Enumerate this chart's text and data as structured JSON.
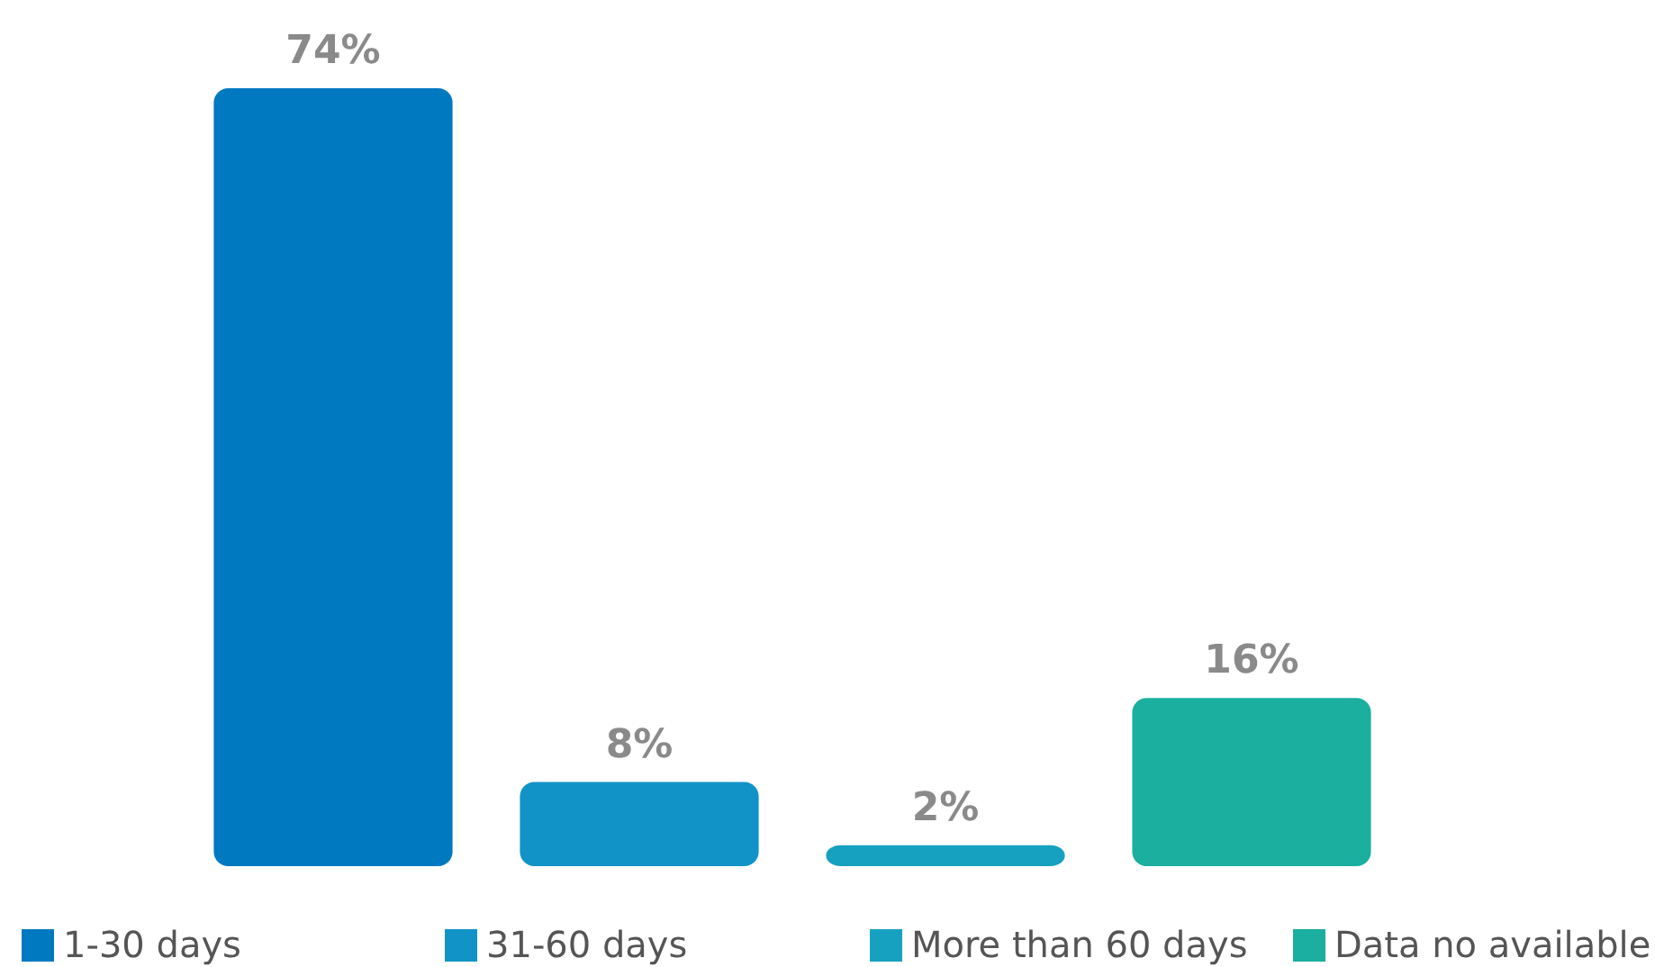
{
  "chart_data": {
    "type": "bar",
    "categories": [
      null,
      null,
      null,
      null
    ],
    "series": [
      {
        "name": "1-30 days",
        "color": "#0079c1",
        "values": [
          74,
          null,
          null,
          null
        ],
        "value_labels": [
          "74%",
          null,
          null,
          null
        ]
      },
      {
        "name": "31-60 days",
        "color": "#1193c7",
        "values": [
          null,
          8,
          null,
          null
        ],
        "value_labels": [
          null,
          "8%",
          null,
          null
        ]
      },
      {
        "name": "More than 60 days",
        "color": "#17a1c0",
        "values": [
          null,
          null,
          2,
          null
        ],
        "value_labels": [
          null,
          null,
          "2%",
          null
        ]
      },
      {
        "name": "Data no available",
        "color": "#1aaf9e",
        "values": [
          null,
          null,
          null,
          16
        ],
        "value_labels": [
          null,
          null,
          null,
          "16%"
        ]
      }
    ],
    "stacked": true,
    "legend": "bottom"
  }
}
